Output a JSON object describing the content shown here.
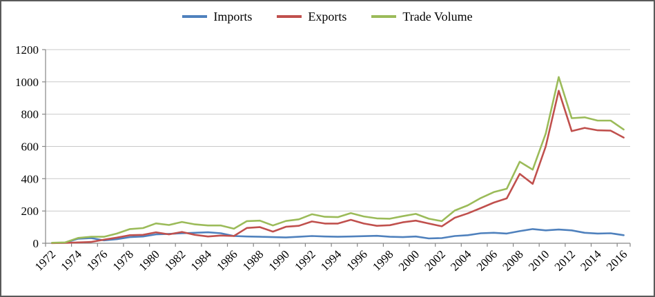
{
  "colors": {
    "grid": "#c9c9c9",
    "axis": "#868686",
    "border": "#595959",
    "text": "#000000"
  },
  "chart_data": {
    "type": "line",
    "title": "",
    "xlabel": "",
    "ylabel": "",
    "grid": true,
    "legend_position": "top",
    "ylim": [
      0,
      1200
    ],
    "y_ticks": [
      0,
      200,
      400,
      600,
      800,
      1000,
      1200
    ],
    "x": [
      1972,
      1973,
      1974,
      1975,
      1976,
      1977,
      1978,
      1979,
      1980,
      1981,
      1982,
      1983,
      1984,
      1985,
      1986,
      1987,
      1988,
      1989,
      1990,
      1991,
      1992,
      1993,
      1994,
      1995,
      1996,
      1997,
      1998,
      1999,
      2000,
      2001,
      2002,
      2003,
      2004,
      2005,
      2006,
      2007,
      2008,
      2009,
      2010,
      2011,
      2012,
      2013,
      2014,
      2015,
      2016
    ],
    "x_tick_labels": [
      "1972",
      "1974",
      "1976",
      "1978",
      "1980",
      "1982",
      "1984",
      "1986",
      "1988",
      "1990",
      "1992",
      "1994",
      "1996",
      "1998",
      "2000",
      "2002",
      "2004",
      "2006",
      "2008",
      "2010",
      "2012",
      "2014",
      "2016"
    ],
    "series": [
      {
        "name": "Imports",
        "color": "#4f81bd",
        "values": [
          2,
          3,
          28,
          32,
          18,
          25,
          38,
          42,
          55,
          58,
          62,
          65,
          68,
          62,
          45,
          42,
          40,
          38,
          36,
          40,
          45,
          42,
          40,
          42,
          44,
          46,
          40,
          38,
          42,
          30,
          32,
          45,
          50,
          62,
          65,
          60,
          75,
          88,
          80,
          85,
          80,
          65,
          60,
          62,
          50
        ]
      },
      {
        "name": "Exports",
        "color": "#c0504d",
        "values": [
          1,
          2,
          5,
          8,
          22,
          35,
          50,
          52,
          68,
          55,
          70,
          52,
          42,
          48,
          45,
          95,
          100,
          72,
          102,
          108,
          135,
          122,
          122,
          145,
          122,
          108,
          112,
          130,
          140,
          122,
          105,
          158,
          185,
          218,
          252,
          278,
          430,
          368,
          600,
          945,
          695,
          715,
          700,
          698,
          655
        ]
      },
      {
        "name": "Trade Volume",
        "color": "#9bbb59",
        "values": [
          3,
          5,
          33,
          40,
          40,
          60,
          88,
          94,
          123,
          113,
          132,
          117,
          110,
          110,
          90,
          137,
          140,
          110,
          138,
          148,
          180,
          164,
          162,
          187,
          166,
          154,
          152,
          168,
          182,
          152,
          137,
          203,
          235,
          280,
          317,
          338,
          505,
          456,
          680,
          1030,
          775,
          780,
          760,
          760,
          705
        ]
      }
    ]
  }
}
